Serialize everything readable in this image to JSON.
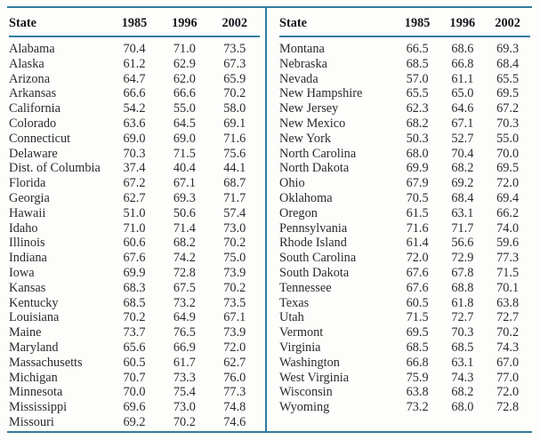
{
  "colors": {
    "rule": "#2e7d9c",
    "header_text": "#16161e",
    "body_text": "#2b2b2b",
    "page_background": "#fdfdfb"
  },
  "table": {
    "columns": [
      "State",
      "1985",
      "1996",
      "2002"
    ],
    "left_rows": [
      [
        "Alabama",
        "70.4",
        "71.0",
        "73.5"
      ],
      [
        "Alaska",
        "61.2",
        "62.9",
        "67.3"
      ],
      [
        "Arizona",
        "64.7",
        "62.0",
        "65.9"
      ],
      [
        "Arkansas",
        "66.6",
        "66.6",
        "70.2"
      ],
      [
        "California",
        "54.2",
        "55.0",
        "58.0"
      ],
      [
        "Colorado",
        "63.6",
        "64.5",
        "69.1"
      ],
      [
        "Connecticut",
        "69.0",
        "69.0",
        "71.6"
      ],
      [
        "Delaware",
        "70.3",
        "71.5",
        "75.6"
      ],
      [
        "Dist. of Columbia",
        "37.4",
        "40.4",
        "44.1"
      ],
      [
        "Florida",
        "67.2",
        "67.1",
        "68.7"
      ],
      [
        "Georgia",
        "62.7",
        "69.3",
        "71.7"
      ],
      [
        "Hawaii",
        "51.0",
        "50.6",
        "57.4"
      ],
      [
        "Idaho",
        "71.0",
        "71.4",
        "73.0"
      ],
      [
        "Illinois",
        "60.6",
        "68.2",
        "70.2"
      ],
      [
        "Indiana",
        "67.6",
        "74.2",
        "75.0"
      ],
      [
        "Iowa",
        "69.9",
        "72.8",
        "73.9"
      ],
      [
        "Kansas",
        "68.3",
        "67.5",
        "70.2"
      ],
      [
        "Kentucky",
        "68.5",
        "73.2",
        "73.5"
      ],
      [
        "Louisiana",
        "70.2",
        "64.9",
        "67.1"
      ],
      [
        "Maine",
        "73.7",
        "76.5",
        "73.9"
      ],
      [
        "Maryland",
        "65.6",
        "66.9",
        "72.0"
      ],
      [
        "Massachusetts",
        "60.5",
        "61.7",
        "62.7"
      ],
      [
        "Michigan",
        "70.7",
        "73.3",
        "76.0"
      ],
      [
        "Minnesota",
        "70.0",
        "75.4",
        "77.3"
      ],
      [
        "Mississippi",
        "69.6",
        "73.0",
        "74.8"
      ],
      [
        "Missouri",
        "69.2",
        "70.2",
        "74.6"
      ]
    ],
    "right_rows": [
      [
        "Montana",
        "66.5",
        "68.6",
        "69.3"
      ],
      [
        "Nebraska",
        "68.5",
        "66.8",
        "68.4"
      ],
      [
        "Nevada",
        "57.0",
        "61.1",
        "65.5"
      ],
      [
        "New Hampshire",
        "65.5",
        "65.0",
        "69.5"
      ],
      [
        "New Jersey",
        "62.3",
        "64.6",
        "67.2"
      ],
      [
        "New Mexico",
        "68.2",
        "67.1",
        "70.3"
      ],
      [
        "New York",
        "50.3",
        "52.7",
        "55.0"
      ],
      [
        "North Carolina",
        "68.0",
        "70.4",
        "70.0"
      ],
      [
        "North Dakota",
        "69.9",
        "68.2",
        "69.5"
      ],
      [
        "Ohio",
        "67.9",
        "69.2",
        "72.0"
      ],
      [
        "Oklahoma",
        "70.5",
        "68.4",
        "69.4"
      ],
      [
        "Oregon",
        "61.5",
        "63.1",
        "66.2"
      ],
      [
        "Pennsylvania",
        "71.6",
        "71.7",
        "74.0"
      ],
      [
        "Rhode Island",
        "61.4",
        "56.6",
        "59.6"
      ],
      [
        "South Carolina",
        "72.0",
        "72.9",
        "77.3"
      ],
      [
        "South Dakota",
        "67.6",
        "67.8",
        "71.5"
      ],
      [
        "Tennessee",
        "67.6",
        "68.8",
        "70.1"
      ],
      [
        "Texas",
        "60.5",
        "61.8",
        "63.8"
      ],
      [
        "Utah",
        "71.5",
        "72.7",
        "72.7"
      ],
      [
        "Vermont",
        "69.5",
        "70.3",
        "70.2"
      ],
      [
        "Virginia",
        "68.5",
        "68.5",
        "74.3"
      ],
      [
        "Washington",
        "66.8",
        "63.1",
        "67.0"
      ],
      [
        "West Virginia",
        "75.9",
        "74.3",
        "77.0"
      ],
      [
        "Wisconsin",
        "63.8",
        "68.2",
        "72.0"
      ],
      [
        "Wyoming",
        "73.2",
        "68.0",
        "72.8"
      ]
    ]
  }
}
